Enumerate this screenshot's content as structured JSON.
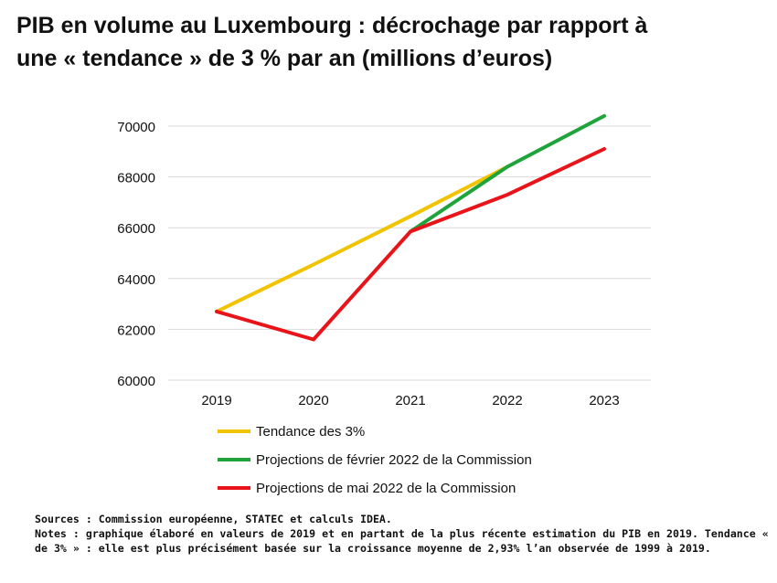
{
  "title_lines": [
    "PIB en volume au Luxembourg : décrochage par rapport à",
    "une « tendance » de 3 % par an (millions d’euros)"
  ],
  "chart_data": {
    "type": "line",
    "title": "PIB en volume au Luxembourg : décrochage par rapport à une « tendance » de 3 % par an (millions d’euros)",
    "categories": [
      "2019",
      "2020",
      "2021",
      "2022",
      "2023"
    ],
    "ylim": [
      60000,
      70000
    ],
    "yticks": [
      60000,
      62000,
      64000,
      66000,
      68000,
      70000
    ],
    "grid": true,
    "legend_position": "bottom",
    "series": [
      {
        "name": "Tendance des 3%",
        "color": "#f2c300",
        "values": [
          62700,
          64550,
          66450,
          68400,
          null
        ]
      },
      {
        "name": "Projections de février 2022 de la Commission",
        "color": "#1ea43a",
        "values": [
          null,
          null,
          65850,
          68400,
          70400
        ]
      },
      {
        "name": "Projections de mai 2022 de la Commission",
        "color": "#e8141a",
        "values": [
          62700,
          61600,
          65850,
          67300,
          69100
        ]
      }
    ]
  },
  "footer_lines": [
    "Sources : Commission européenne, STATEC et calculs IDEA.",
    "Notes : graphique élaboré en valeurs de 2019 et en partant de la plus récente estimation du PIB en 2019. Tendance «",
    "de 3% » : elle est plus précisément basée sur la croissance moyenne de 2,93% l’an observée de 1999 à 2019."
  ]
}
